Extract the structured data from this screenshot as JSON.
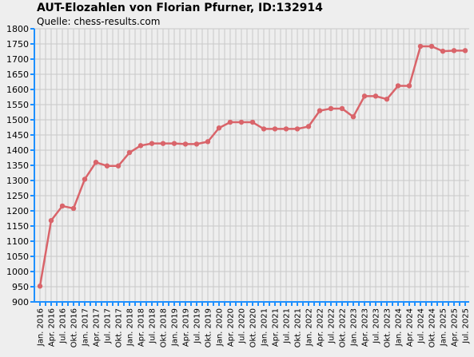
{
  "title": "AUT-Elozahlen von Florian Pfurner, ID:132914",
  "subtitle": "Quelle: chess-results.com",
  "colors": {
    "background": "#eeeeee",
    "grid": "#c8c8c8",
    "axis": "#1e90ff",
    "series": "#d9646a"
  },
  "chart_data": {
    "type": "line",
    "title": "AUT-Elozahlen von Florian Pfurner, ID:132914",
    "subtitle": "Quelle: chess-results.com",
    "xlabel": "",
    "ylabel": "",
    "ylim": [
      900,
      1800
    ],
    "ytick_step": 50,
    "grid": true,
    "x": [
      "Jan. 2016",
      "",
      "Apr. 2016",
      "",
      "Jul. 2016",
      "",
      "Okt. 2016",
      "",
      "Jan. 2017",
      "",
      "Apr. 2017",
      "",
      "Jul. 2017",
      "",
      "Okt. 2017",
      "",
      "Jan. 2018",
      "",
      "Apr. 2018",
      "",
      "Jul. 2018",
      "",
      "Okt. 2018",
      "",
      "Jan. 2019",
      "",
      "Apr. 2019",
      "",
      "Jul. 2019",
      "",
      "Okt. 2019",
      "",
      "Jan. 2020",
      "",
      "Apr. 2020",
      "",
      "Jul. 2020",
      "",
      "Okt. 2020",
      "",
      "Jan. 2021",
      "",
      "Apr. 2021",
      "",
      "Jul. 2021",
      "",
      "Okt. 2021",
      "",
      "Jan. 2022",
      "",
      "Apr. 2022",
      "",
      "Jul. 2022",
      "",
      "Okt. 2022",
      "",
      "Jan. 2023",
      "",
      "Apr. 2023",
      "",
      "Jul. 2023",
      "",
      "Okt. 2023",
      "",
      "Jan. 2024",
      "",
      "Apr. 2024",
      "",
      "Jul. 2024",
      "",
      "Okt. 2024",
      "",
      "Jan. 2025",
      "",
      "Apr. 2025",
      "",
      "Jul. 2025"
    ],
    "series": [
      {
        "name": "",
        "points": [
          {
            "x": "Jan. 2016",
            "y": 952
          },
          {
            "x": "Apr. 2016",
            "y": 1168
          },
          {
            "x": "Jul. 2016",
            "y": 1216
          },
          {
            "x": "Okt. 2016",
            "y": 1208
          },
          {
            "x": "Jan. 2017",
            "y": 1304
          },
          {
            "x": "Apr. 2017",
            "y": 1360
          },
          {
            "x": "Jul. 2017",
            "y": 1348
          },
          {
            "x": "Okt. 2017",
            "y": 1348
          },
          {
            "x": "Jan. 2018",
            "y": 1392
          },
          {
            "x": "Apr. 2018",
            "y": 1415
          },
          {
            "x": "Jul. 2018",
            "y": 1422
          },
          {
            "x": "Okt. 2018",
            "y": 1422
          },
          {
            "x": "Jan. 2019",
            "y": 1422
          },
          {
            "x": "Apr. 2019",
            "y": 1420
          },
          {
            "x": "Jul. 2019",
            "y": 1420
          },
          {
            "x": "Okt. 2019",
            "y": 1428
          },
          {
            "x": "Jan. 2020",
            "y": 1473
          },
          {
            "x": "Apr. 2020",
            "y": 1492
          },
          {
            "x": "Jul. 2020",
            "y": 1492
          },
          {
            "x": "Okt. 2020",
            "y": 1492
          },
          {
            "x": "Jan. 2021",
            "y": 1470
          },
          {
            "x": "Apr. 2021",
            "y": 1470
          },
          {
            "x": "Jul. 2021",
            "y": 1470
          },
          {
            "x": "Okt. 2021",
            "y": 1470
          },
          {
            "x": "Jan. 2022",
            "y": 1478
          },
          {
            "x": "Apr. 2022",
            "y": 1530
          },
          {
            "x": "Jul. 2022",
            "y": 1537
          },
          {
            "x": "Okt. 2022",
            "y": 1537
          },
          {
            "x": "Jan. 2023",
            "y": 1510
          },
          {
            "x": "Apr. 2023",
            "y": 1578
          },
          {
            "x": "Jul. 2023",
            "y": 1578
          },
          {
            "x": "Okt. 2023",
            "y": 1568
          },
          {
            "x": "Jan. 2024",
            "y": 1612
          },
          {
            "x": "Apr. 2024",
            "y": 1612
          },
          {
            "x": "Jul. 2024",
            "y": 1742
          },
          {
            "x": "Okt. 2024",
            "y": 1742
          },
          {
            "x": "Jan. 2025",
            "y": 1726
          },
          {
            "x": "Apr. 2025",
            "y": 1728
          },
          {
            "x": "Jul. 2025",
            "y": 1728
          }
        ]
      }
    ]
  }
}
